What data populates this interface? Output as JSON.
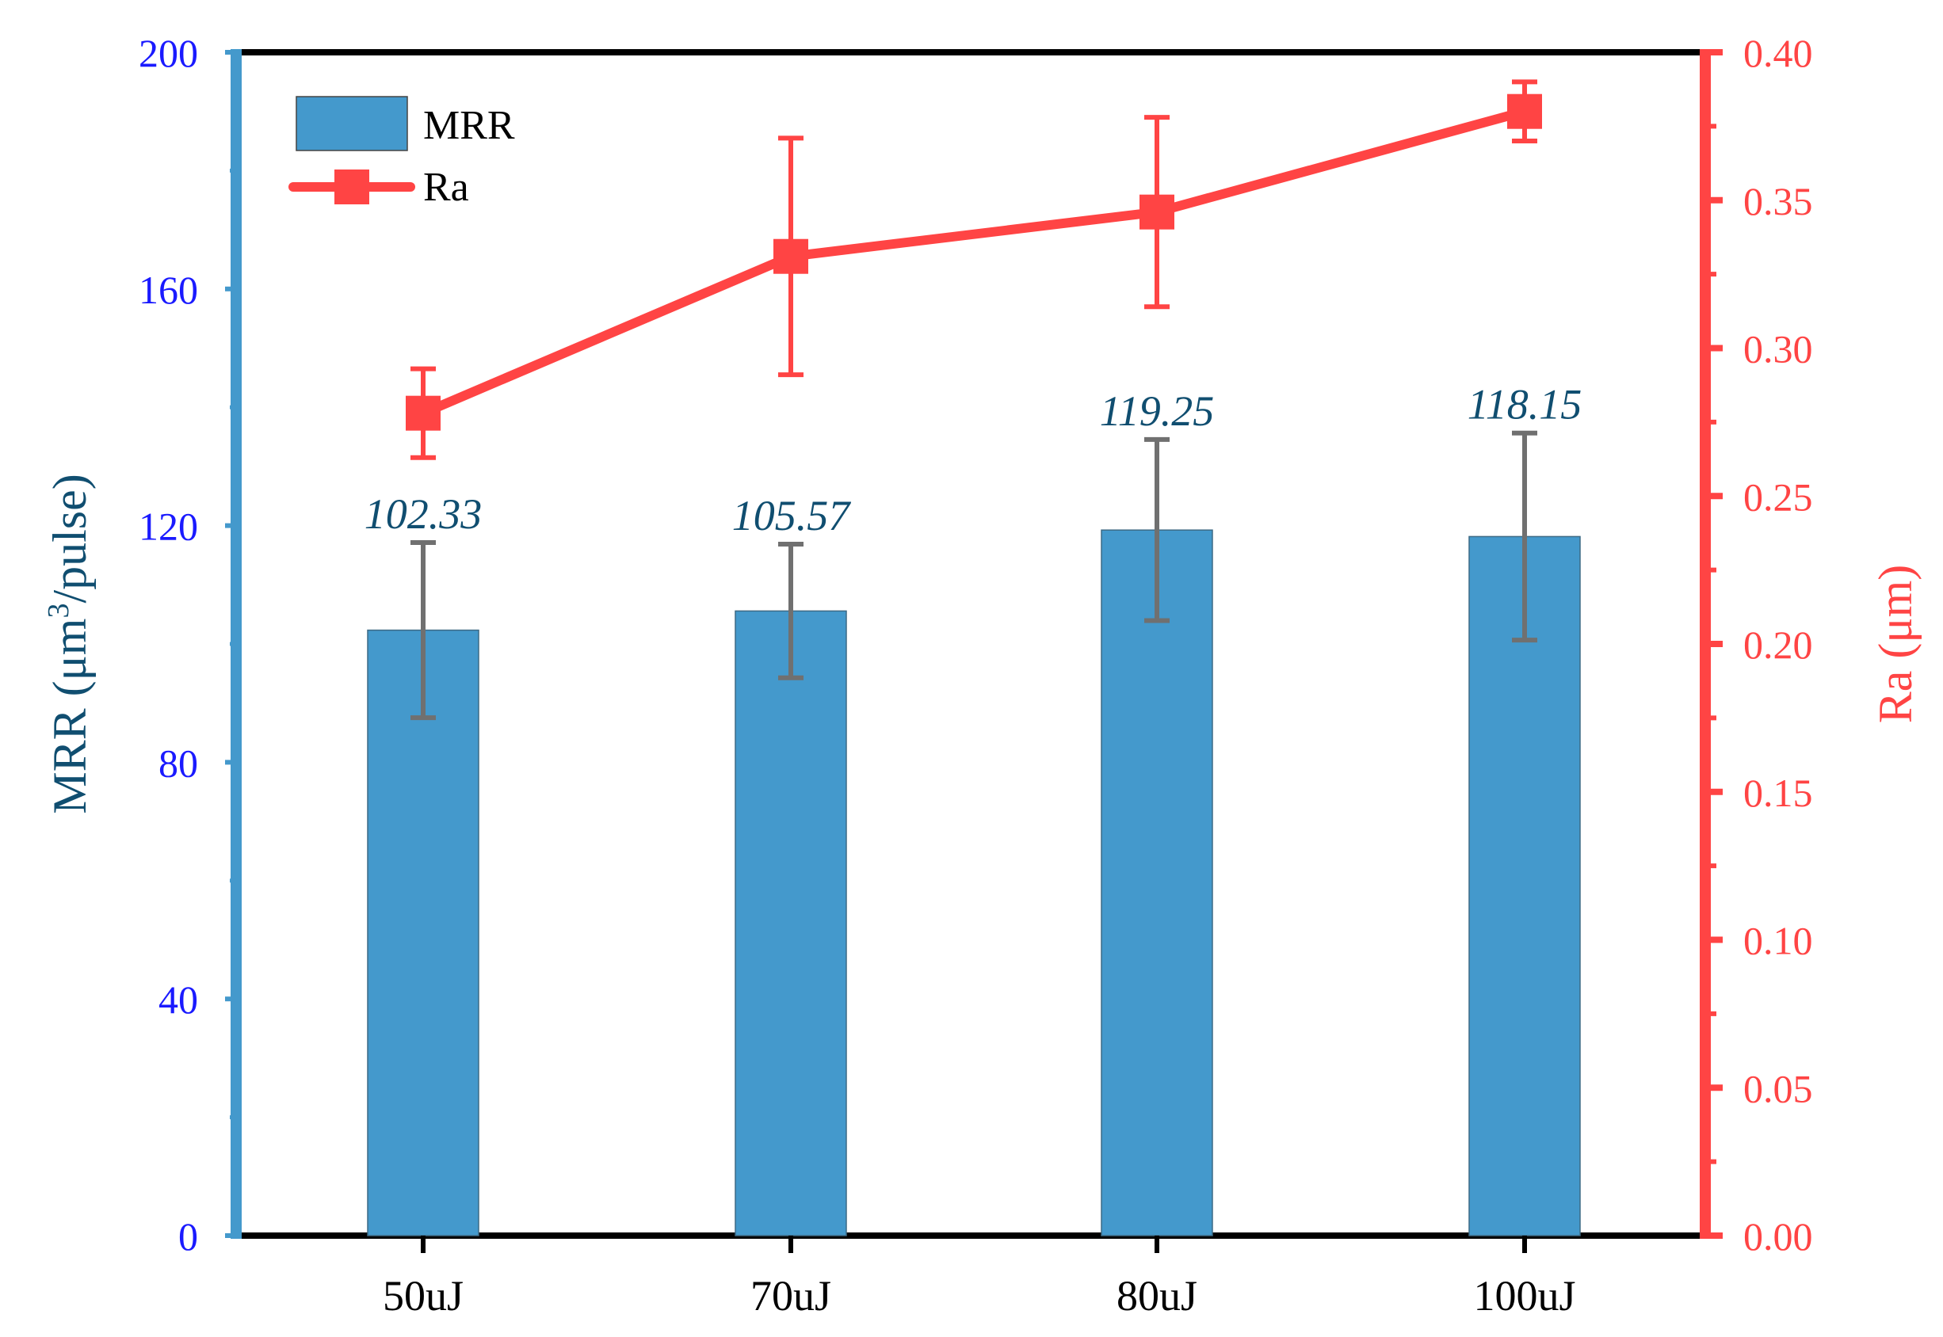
{
  "chart_data": {
    "type": "bar+line",
    "categories": [
      "50uJ",
      "70uJ",
      "80uJ",
      "100uJ"
    ],
    "series": [
      {
        "name": "MRR",
        "kind": "bar",
        "axis": "left",
        "values": [
          102.33,
          105.57,
          119.25,
          118.15
        ],
        "value_labels": [
          "102.33",
          "105.57",
          "119.25",
          "118.15"
        ],
        "error": [
          14.8,
          11.3,
          15.3,
          17.5
        ],
        "color": "#4499cc"
      },
      {
        "name": "Ra",
        "kind": "line",
        "axis": "right",
        "values": [
          0.278,
          0.331,
          0.346,
          0.38
        ],
        "error": [
          0.015,
          0.04,
          0.032,
          0.01
        ],
        "color": "#ff4444"
      }
    ],
    "left_axis": {
      "label_main": "MRR (μm",
      "label_sup": "3",
      "label_tail": "/pulse)",
      "ylim": [
        0,
        200
      ],
      "ticks": [
        0,
        40,
        80,
        120,
        160,
        200
      ],
      "tick_labels": [
        "0",
        "40",
        "80",
        "120",
        "160",
        "200"
      ],
      "color": "#4499cc",
      "tick_color": "#1a1aff"
    },
    "right_axis": {
      "label": "Ra (μm)",
      "ylim": [
        0,
        0.4
      ],
      "ticks": [
        0,
        0.05,
        0.1,
        0.15,
        0.2,
        0.25,
        0.3,
        0.35,
        0.4
      ],
      "tick_labels": [
        "0.00",
        "0.05",
        "0.10",
        "0.15",
        "0.20",
        "0.25",
        "0.30",
        "0.35",
        "0.40"
      ],
      "color": "#ff4444"
    },
    "legend": {
      "position": "top-left",
      "entries": [
        "MRR",
        "Ra"
      ]
    },
    "grid": false,
    "errorbar_color": "#707070"
  }
}
